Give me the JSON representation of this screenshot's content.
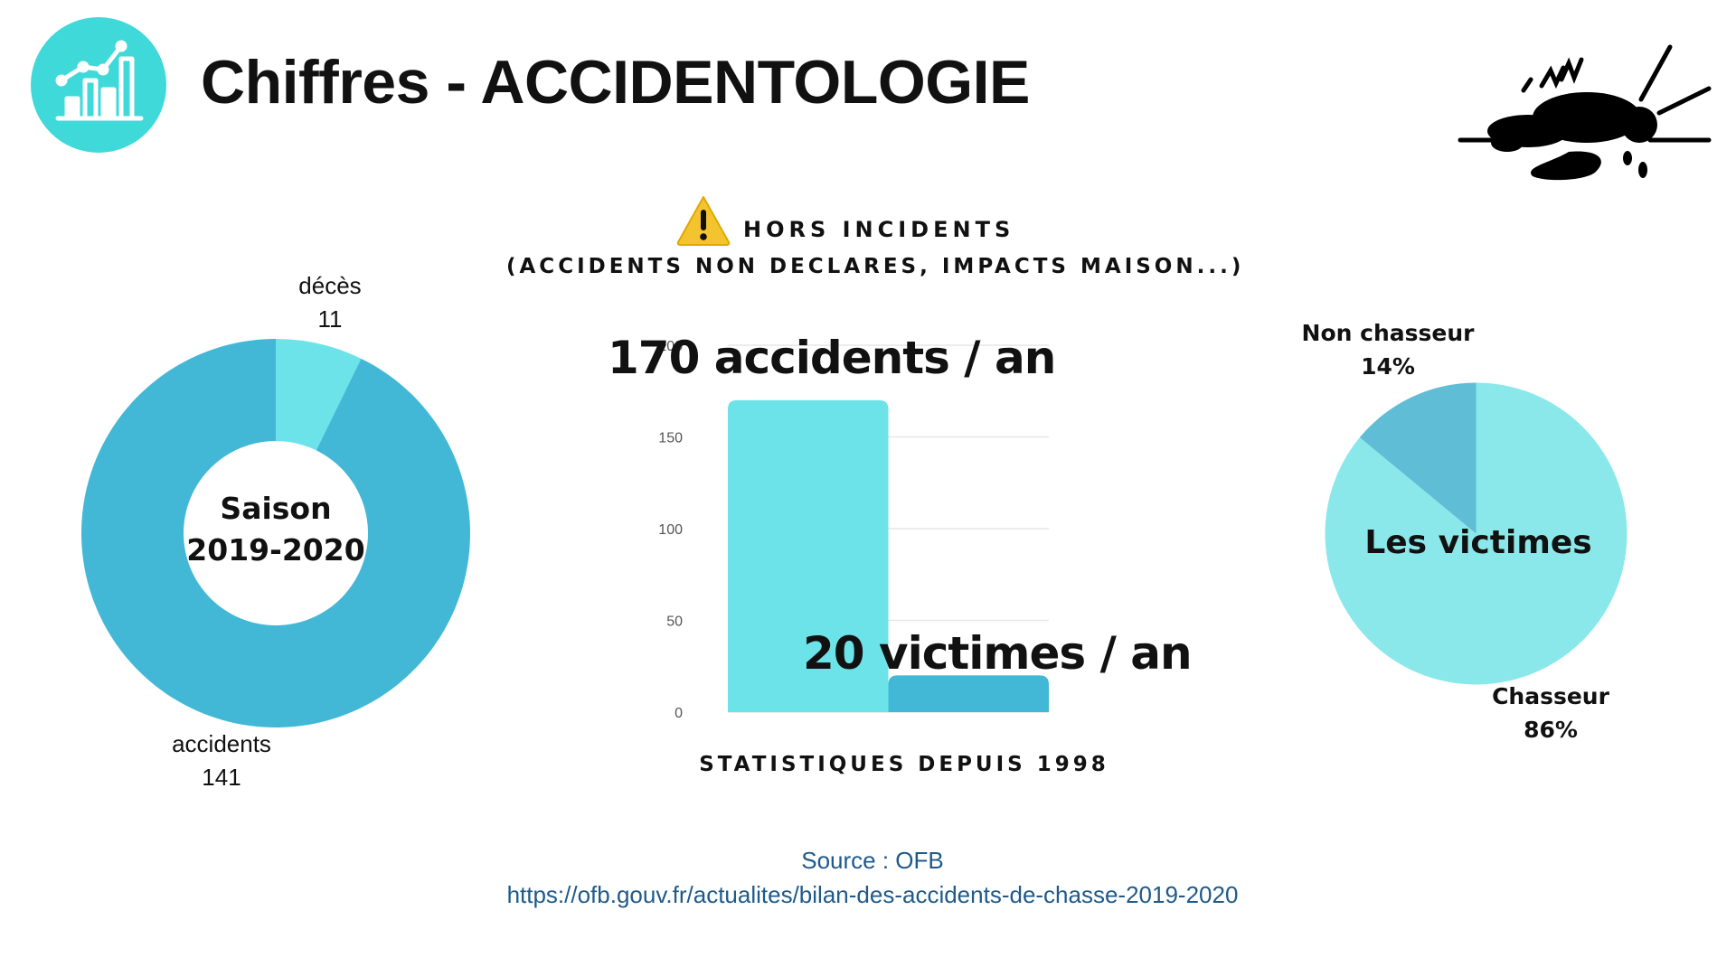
{
  "header": {
    "title": "Chiffres - ACCIDENTOLOGIE",
    "logo_icon": "bar-chart-growth-icon",
    "illustration_icon": "injured-person-icon"
  },
  "warning": {
    "icon": "warning-icon",
    "title": "HORS INCIDENTS",
    "subtitle": "(ACCIDENTS NON DECLARES, IMPACTS MAISON...)"
  },
  "colors": {
    "teal_light": "#6ce3e8",
    "teal_dark": "#42b8d6",
    "pie_major": "#8ae8eb",
    "pie_minor": "#5fbdd5",
    "logo_bg": "#3fd9d9",
    "source_text": "#1f5a8a"
  },
  "chart_data": [
    {
      "type": "pie",
      "variant": "donut",
      "center_label": [
        "Saison",
        "2019-2020"
      ],
      "slices": [
        {
          "label": "décès",
          "value": 11
        },
        {
          "label": "accidents",
          "value": 141
        }
      ]
    },
    {
      "type": "bar",
      "categories": [
        "",
        ""
      ],
      "values": [
        170,
        20
      ],
      "ylim": [
        0,
        200
      ],
      "yticks": [
        0,
        50,
        100,
        150,
        200
      ],
      "grid": true,
      "annotations": [
        "170 accidents / an",
        "20 victimes / an"
      ],
      "caption": "STATISTIQUES DEPUIS 1998"
    },
    {
      "type": "pie",
      "center_label": "Les victimes",
      "slices": [
        {
          "label": "Chasseur",
          "value": 86,
          "display": "86%"
        },
        {
          "label": "Non chasseur",
          "value": 14,
          "display": "14%"
        }
      ]
    }
  ],
  "source": {
    "label": "Source : OFB",
    "url": "https://ofb.gouv.fr/actualites/bilan-des-accidents-de-chasse-2019-2020"
  }
}
